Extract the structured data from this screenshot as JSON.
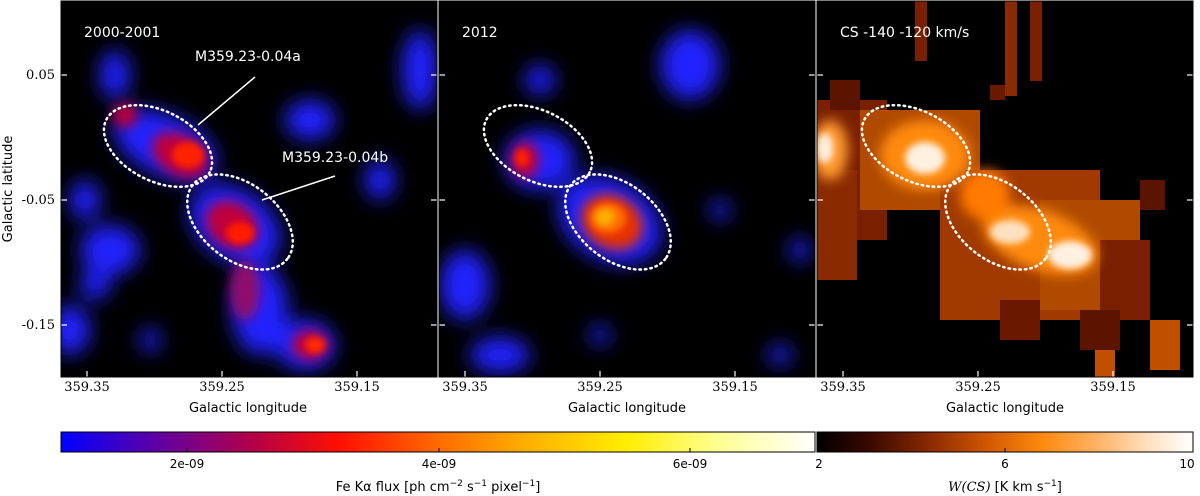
{
  "chart_data": [
    {
      "type": "heatmap",
      "panel_label": "2000-2001",
      "xlabel": "Galactic longitude",
      "ylabel": "Galactic latitude",
      "x_ticks": [
        "359.35",
        "359.25",
        "359.15"
      ],
      "y_ticks": [
        "0.05",
        "-0.05",
        "-0.15"
      ],
      "colormap": "Fe Kα flux",
      "annotations": [
        {
          "text": "M359.23-0.04a"
        },
        {
          "text": "M359.23-0.04b"
        }
      ],
      "regions": [
        {
          "name": "M359.23-0.04a",
          "shape": "ellipse",
          "style": "dotted",
          "color": "#ffffff"
        },
        {
          "name": "M359.23-0.04b",
          "shape": "ellipse",
          "style": "dotted",
          "color": "#ffffff"
        }
      ]
    },
    {
      "type": "heatmap",
      "panel_label": "2012",
      "xlabel": "Galactic longitude",
      "x_ticks": [
        "359.35",
        "359.25",
        "359.15"
      ],
      "colormap": "Fe Kα flux",
      "regions": [
        {
          "name": "M359.23-0.04a",
          "shape": "ellipse",
          "style": "dotted",
          "color": "#ffffff"
        },
        {
          "name": "M359.23-0.04b",
          "shape": "ellipse",
          "style": "dotted",
          "color": "#ffffff"
        }
      ]
    },
    {
      "type": "heatmap",
      "panel_label": "CS -140 -120 km/s",
      "xlabel": "Galactic longitude",
      "x_ticks": [
        "359.35",
        "359.25",
        "359.15"
      ],
      "colormap": "W(CS)",
      "regions": [
        {
          "name": "M359.23-0.04a",
          "shape": "ellipse",
          "style": "dotted",
          "color": "#ffffff"
        },
        {
          "name": "M359.23-0.04b",
          "shape": "ellipse",
          "style": "dotted",
          "color": "#ffffff"
        }
      ]
    }
  ],
  "colorbars": [
    {
      "name": "fe-flux",
      "ticks": [
        "2e-09",
        "4e-09",
        "6e-09"
      ],
      "label_main": "Fe Kα flux [ph cm",
      "label_exp1": "−2",
      "label_mid": " s",
      "label_exp2": "−1",
      "label_end": " pixel",
      "label_exp3": "−1",
      "label_close": "]",
      "colors": [
        "#0000ff",
        "#5a00aa",
        "#b0004a",
        "#ff1000",
        "#ff6a00",
        "#ffb000",
        "#ffee00",
        "#ffff90",
        "#ffffff"
      ]
    },
    {
      "name": "cs-intensity",
      "ticks": [
        "2",
        "6",
        "10"
      ],
      "label_italic": "W(CS)",
      "label_rest": " [K km s",
      "label_exp": "−1",
      "label_close": "]",
      "colors": [
        "#000000",
        "#3a0800",
        "#8a2a00",
        "#d45a00",
        "#ff8a10",
        "#ffb060",
        "#ffe0c0",
        "#ffffff"
      ]
    }
  ]
}
